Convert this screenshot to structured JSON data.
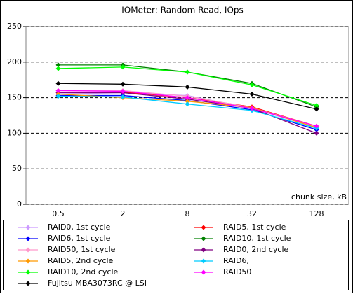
{
  "chart_data": {
    "type": "line",
    "title": "IOMeter: Random Read, IOps",
    "x_label": "chunk size, kB",
    "categories": [
      "0.5",
      "2",
      "8",
      "32",
      "128"
    ],
    "ylim": [
      0,
      250
    ],
    "yticks": [
      0,
      50,
      100,
      150,
      200,
      250
    ],
    "grid": true,
    "legend": "bottom",
    "series": [
      {
        "name": "RAID0, 1st cycle",
        "color": "#cc99ff",
        "values": [
          155,
          157,
          153,
          135,
          108
        ]
      },
      {
        "name": "RAID5, 1st cycle",
        "color": "#ff0000",
        "values": [
          157,
          158,
          150,
          137,
          110
        ]
      },
      {
        "name": "RAID6, 1st cycle",
        "color": "#0000ff",
        "values": [
          153,
          153,
          146,
          133,
          105
        ]
      },
      {
        "name": "RAID10, 1st cycle",
        "color": "#008000",
        "values": [
          196,
          196,
          186,
          170,
          137
        ]
      },
      {
        "name": "RAID50, 1st cycle",
        "color": "#ff99cc",
        "values": [
          160,
          160,
          152,
          136,
          110
        ]
      },
      {
        "name": "RAID0, 2nd cycle",
        "color": "#800080",
        "values": [
          157,
          157,
          148,
          135,
          100
        ]
      },
      {
        "name": "RAID5, 2nd cycle",
        "color": "#ff9900",
        "values": [
          155,
          150,
          145,
          136,
          108
        ]
      },
      {
        "name": "RAID6,",
        "color": "#00ccff",
        "values": [
          152,
          151,
          141,
          132,
          107
        ]
      },
      {
        "name": "RAID10, 2nd cycle",
        "color": "#00ff00",
        "values": [
          191,
          193,
          186,
          168,
          139
        ]
      },
      {
        "name": "RAID50",
        "color": "#ff00ff",
        "values": [
          160,
          159,
          150,
          135,
          110
        ]
      },
      {
        "name": "Fujitsu MBA3073RC @ LSI",
        "color": "#000000",
        "values": [
          170,
          169,
          165,
          155,
          134
        ]
      }
    ]
  }
}
